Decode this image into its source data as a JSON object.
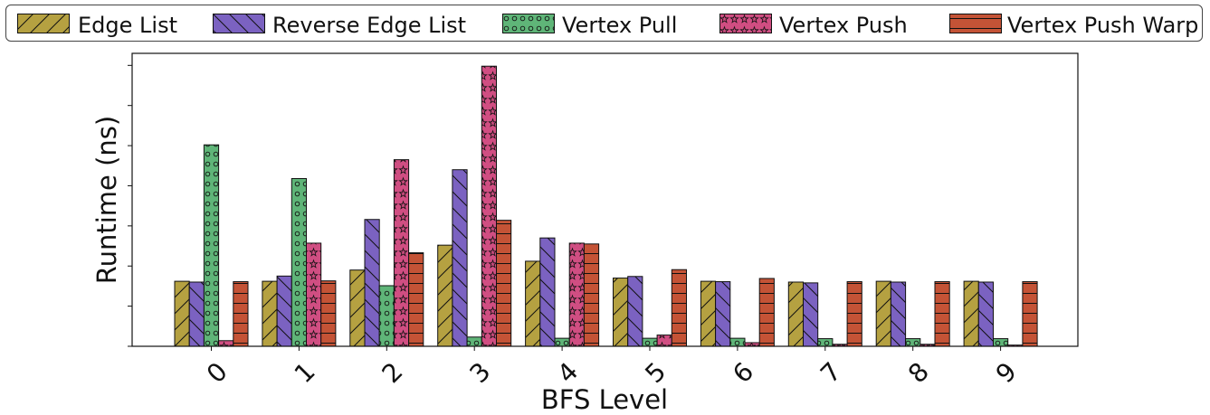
{
  "chart_data": {
    "type": "bar",
    "title": "",
    "xlabel": "BFS Level",
    "ylabel": "Runtime (ns)",
    "categories": [
      "0",
      "1",
      "2",
      "3",
      "4",
      "5",
      "6",
      "7",
      "8",
      "9"
    ],
    "ylim": [
      0,
      7.3
    ],
    "y_tick_labels": "hidden",
    "grid": false,
    "legend_placement": "top (above plot, single row)",
    "series": [
      {
        "name": "Edge List",
        "color": "#b5a141",
        "hatch": "forward-diagonal",
        "values": [
          1.62,
          1.62,
          1.9,
          2.52,
          2.12,
          1.7,
          1.62,
          1.6,
          1.62,
          1.62
        ]
      },
      {
        "name": "Reverse Edge List",
        "color": "#7b62c1",
        "hatch": "back-diagonal",
        "values": [
          1.6,
          1.75,
          3.16,
          4.4,
          2.7,
          1.74,
          1.61,
          1.58,
          1.6,
          1.6
        ]
      },
      {
        "name": "Vertex Pull",
        "color": "#5fb578",
        "hatch": "small-circles",
        "values": [
          5.02,
          4.18,
          1.51,
          0.23,
          0.2,
          0.2,
          0.2,
          0.19,
          0.19,
          0.19
        ]
      },
      {
        "name": "Vertex Push",
        "color": "#d04e82",
        "hatch": "stars",
        "values": [
          0.14,
          2.57,
          4.65,
          6.98,
          2.57,
          0.28,
          0.09,
          0.05,
          0.05,
          0.03
        ]
      },
      {
        "name": "Vertex Push Warp",
        "color": "#c45336",
        "hatch": "horizontal-lines",
        "values": [
          1.61,
          1.63,
          2.33,
          3.14,
          2.55,
          1.91,
          1.69,
          1.61,
          1.61,
          1.61
        ]
      }
    ]
  }
}
